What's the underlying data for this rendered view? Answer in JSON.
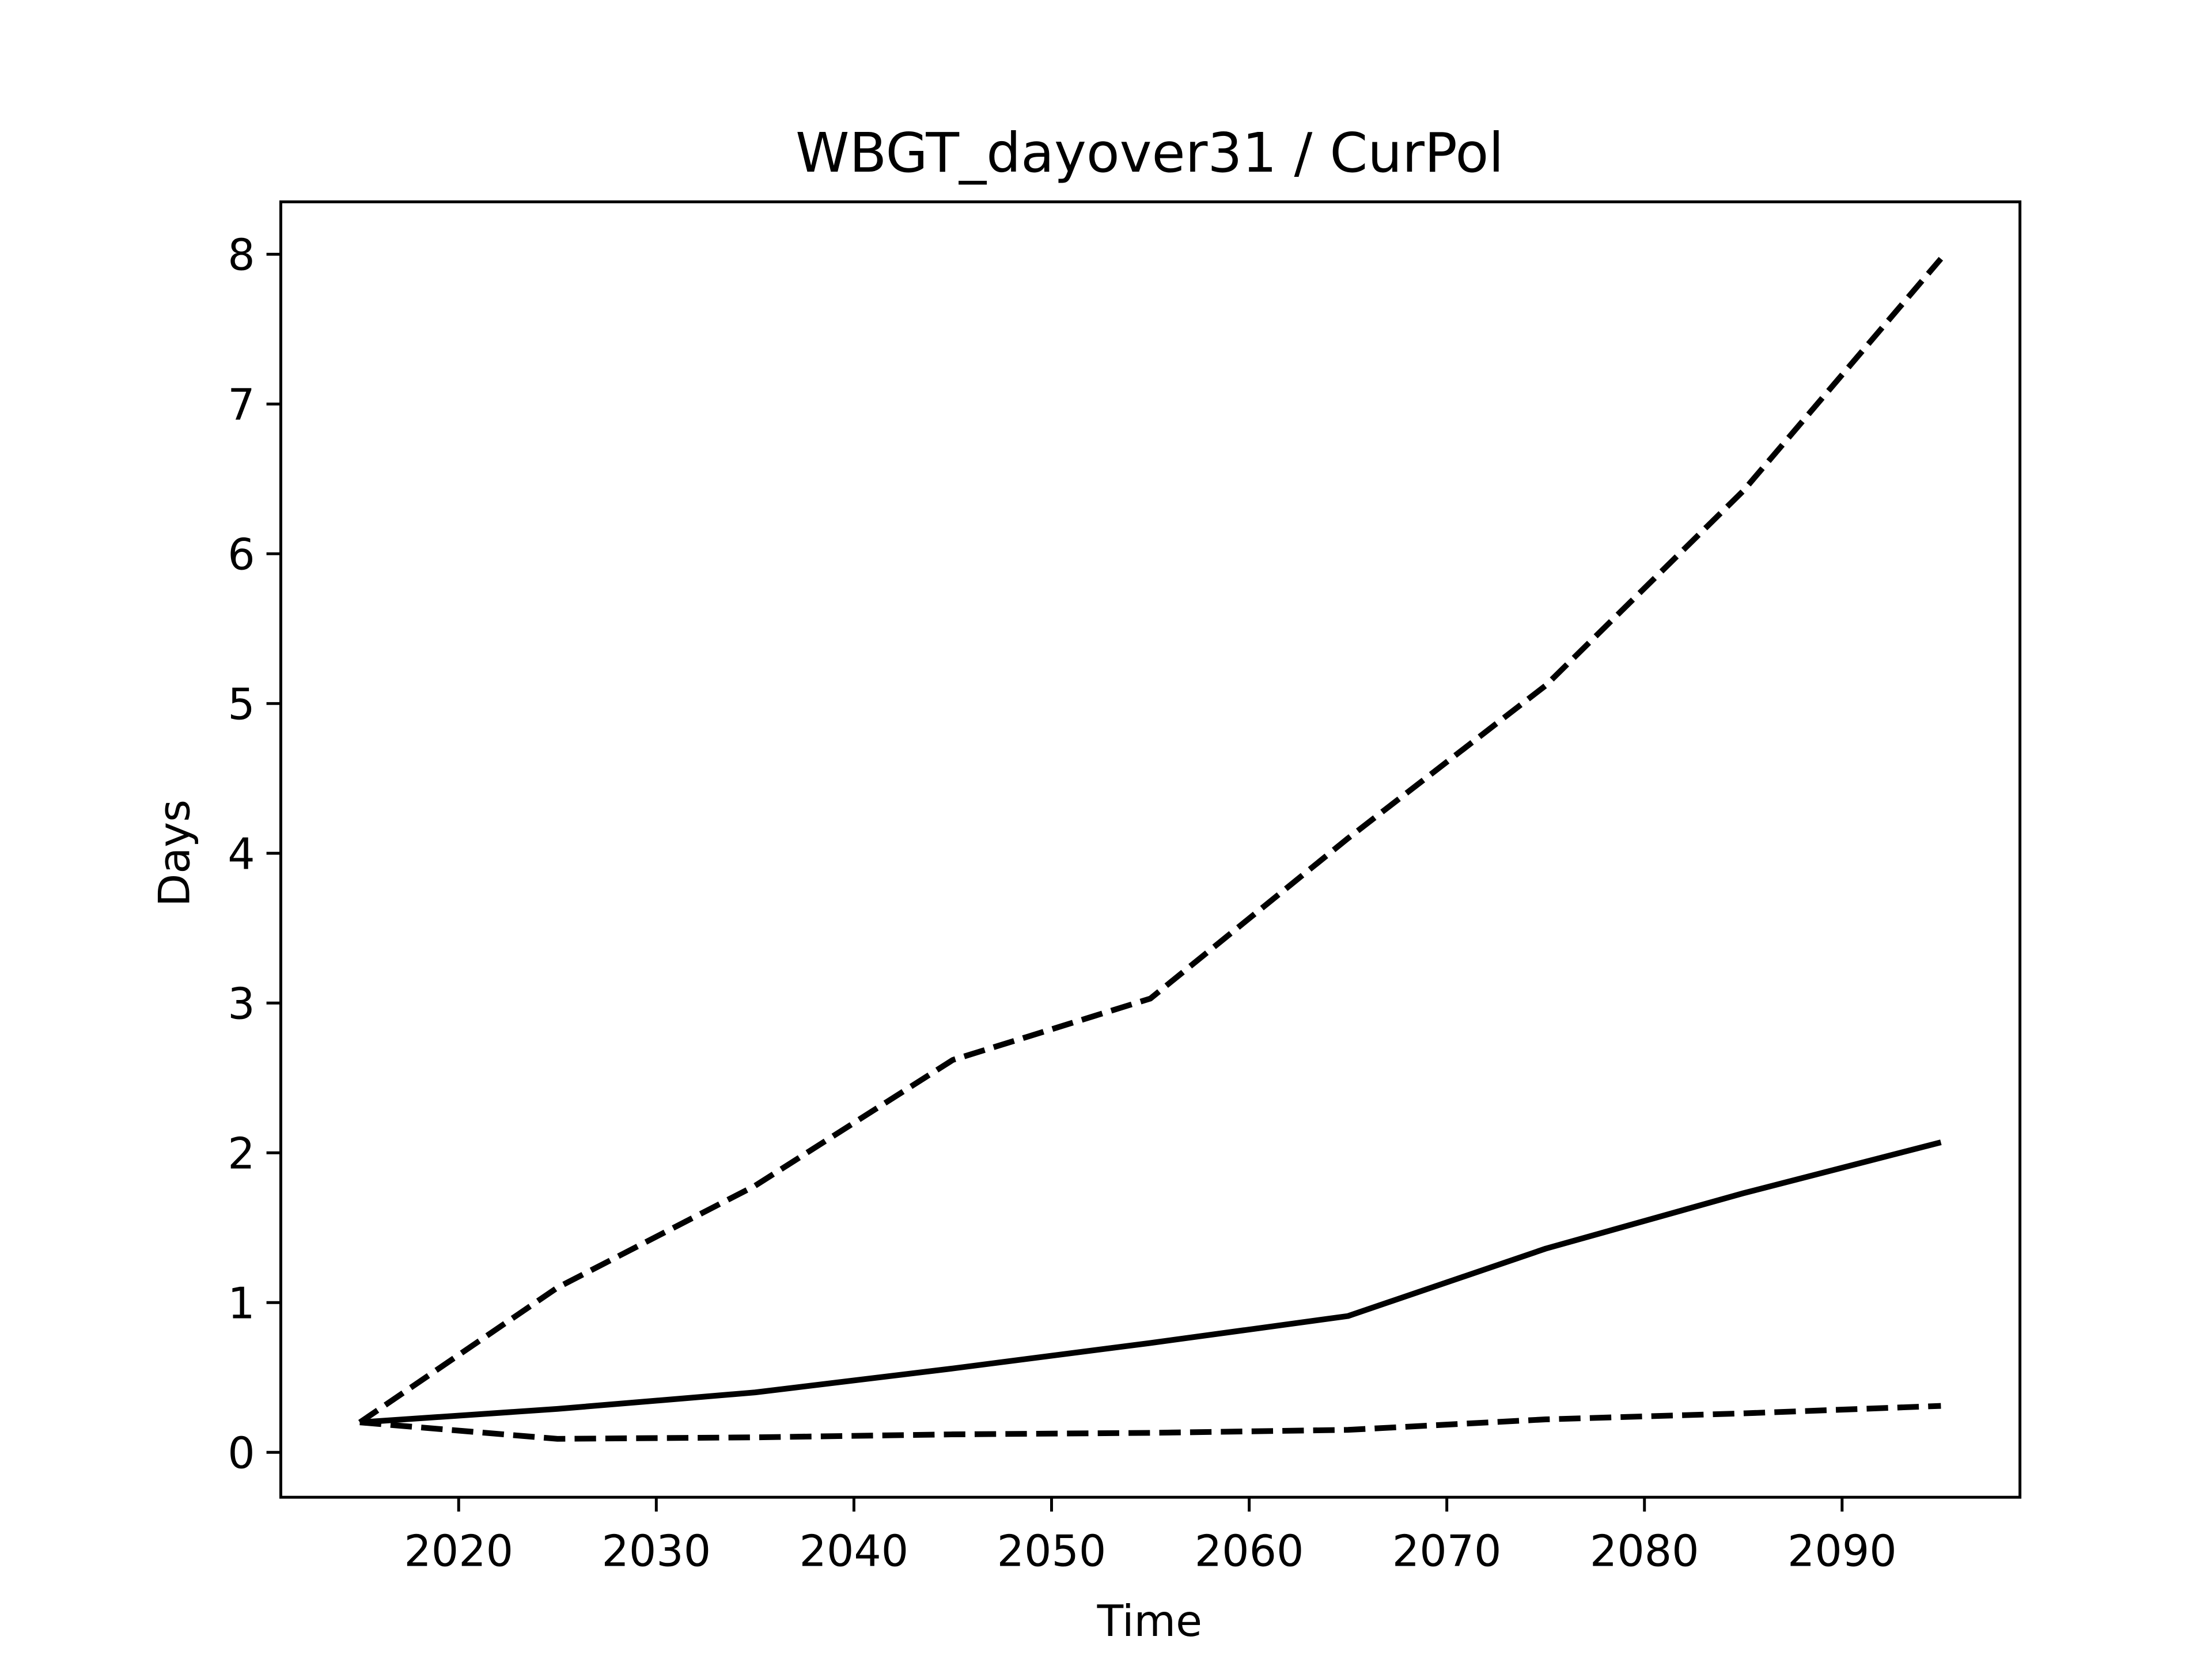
{
  "chart_data": {
    "type": "line",
    "title": "WBGT_dayover31 / CurPol",
    "xlabel": "Time",
    "ylabel": "Days",
    "x": [
      2015,
      2025,
      2035,
      2045,
      2055,
      2065,
      2075,
      2085,
      2095
    ],
    "series": [
      {
        "color": "#000000",
        "dashed": true,
        "values": [
          0.2,
          1.1,
          1.78,
          2.62,
          3.03,
          4.1,
          5.12,
          6.42,
          7.97
        ]
      },
      {
        "color": "#000000",
        "dashed": false,
        "values": [
          0.2,
          0.29,
          0.4,
          0.56,
          0.73,
          0.91,
          1.36,
          1.73,
          2.07
        ]
      },
      {
        "color": "#000000",
        "dashed": true,
        "values": [
          0.2,
          0.09,
          0.1,
          0.12,
          0.13,
          0.15,
          0.22,
          0.26,
          0.31
        ]
      }
    ],
    "xlim": [
      2011,
      2099
    ],
    "xticks": [
      2020,
      2030,
      2040,
      2050,
      2060,
      2070,
      2080,
      2090
    ],
    "ylim": [
      -0.3,
      8.35
    ],
    "yticks": [
      0,
      1,
      2,
      3,
      4,
      5,
      6,
      7,
      8
    ],
    "grid": false
  }
}
